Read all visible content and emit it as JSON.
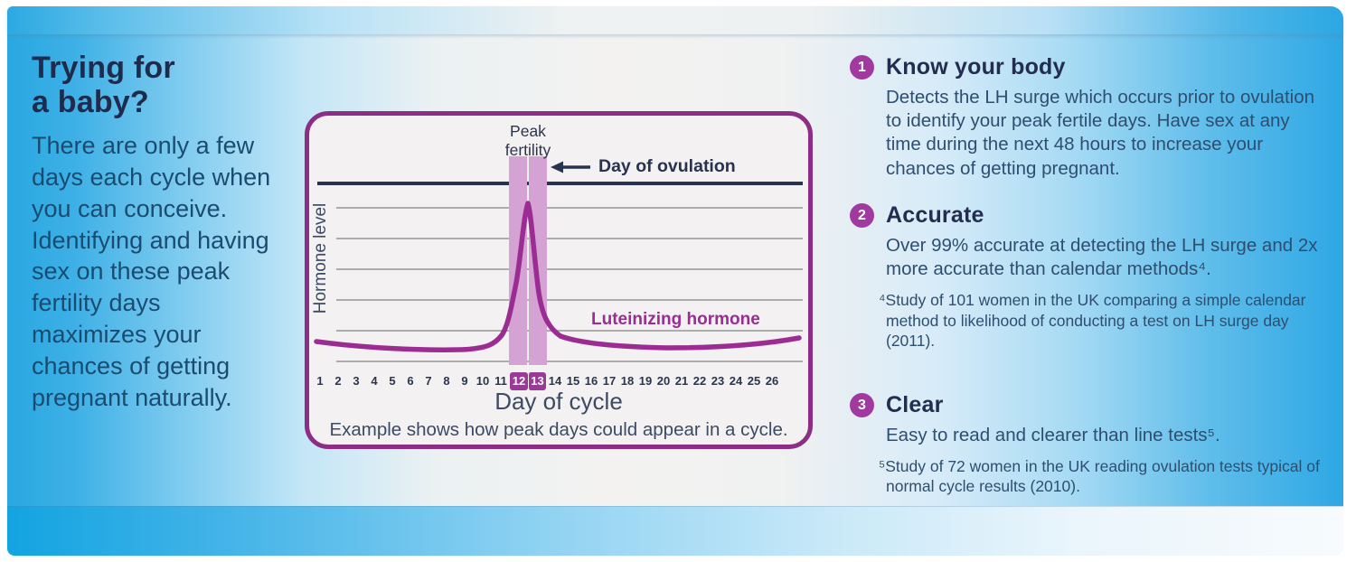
{
  "colors": {
    "azure_accent": "#29A8E2",
    "navy_heading": "#1F2B4D",
    "steel_body": "#2E4E70",
    "purple_accent": "#9B2C91",
    "purple_border": "#8C2E86",
    "band_fill": "#D5A3D3",
    "circle_fill": "#A139A0"
  },
  "left": {
    "heading_line1": "Trying for",
    "heading_line2": "a baby?",
    "body": "There are only a few days each cycle when you can conceive. Identifying and having sex on these peak fertility days maximizes your chances of getting pregnant naturally."
  },
  "chart": {
    "peak_label_line1": "Peak",
    "peak_label_line2": "fertility",
    "ovulation_label": "Day of ovulation",
    "y_axis_label": "Hormone level",
    "series_label": "Luteinizing hormone",
    "x_axis_label": "Day of cycle",
    "caption": "Example shows how peak days could appear in a cycle."
  },
  "chart_data": {
    "type": "line",
    "title": "",
    "xlabel": "Day of cycle",
    "ylabel": "Hormone level",
    "x": [
      1,
      2,
      3,
      4,
      5,
      6,
      7,
      8,
      9,
      10,
      11,
      12,
      13,
      14,
      15,
      16,
      17,
      18,
      19,
      20,
      21,
      22,
      23,
      24,
      25,
      26
    ],
    "series": [
      {
        "name": "Luteinizing hormone",
        "values": [
          1.2,
          1.1,
          1.0,
          0.95,
          0.9,
          0.9,
          0.95,
          1.0,
          1.0,
          1.1,
          1.6,
          5.5,
          9.6,
          2.0,
          1.5,
          1.3,
          1.2,
          1.1,
          1.05,
          1.0,
          1.0,
          1.05,
          1.1,
          1.2,
          1.35,
          1.5
        ]
      }
    ],
    "highlight_days": [
      12,
      13
    ],
    "annotations": [
      {
        "text": "Peak fertility",
        "target": "shaded band over days 12-13"
      },
      {
        "text": "Day of ovulation",
        "target": "arrow pointing left at day 13"
      }
    ],
    "grid": true,
    "gridlines_horizontal": 6,
    "legend_position": "inline label right of peak",
    "caption": "Example shows how peak days could appear in a cycle."
  },
  "points": [
    {
      "number": "1",
      "title": "Know your body",
      "body": "Detects the LH surge which occurs prior to ovulation to identify your peak fertile days. Have sex at any time during the next 48 hours to increase your chances of getting pregnant.",
      "footnote": ""
    },
    {
      "number": "2",
      "title": "Accurate",
      "body": "Over 99% accurate at detecting the LH surge and 2x more accurate than calendar methods⁴.",
      "footnote": "⁴Study of 101 women in the UK comparing a simple calendar method to likelihood of conducting a test on LH surge day (2011)."
    },
    {
      "number": "3",
      "title": "Clear",
      "body": "Easy to read and clearer than line tests⁵.",
      "footnote": "⁵Study of 72 women in the UK reading ovulation tests typical of normal cycle results (2010)."
    }
  ]
}
